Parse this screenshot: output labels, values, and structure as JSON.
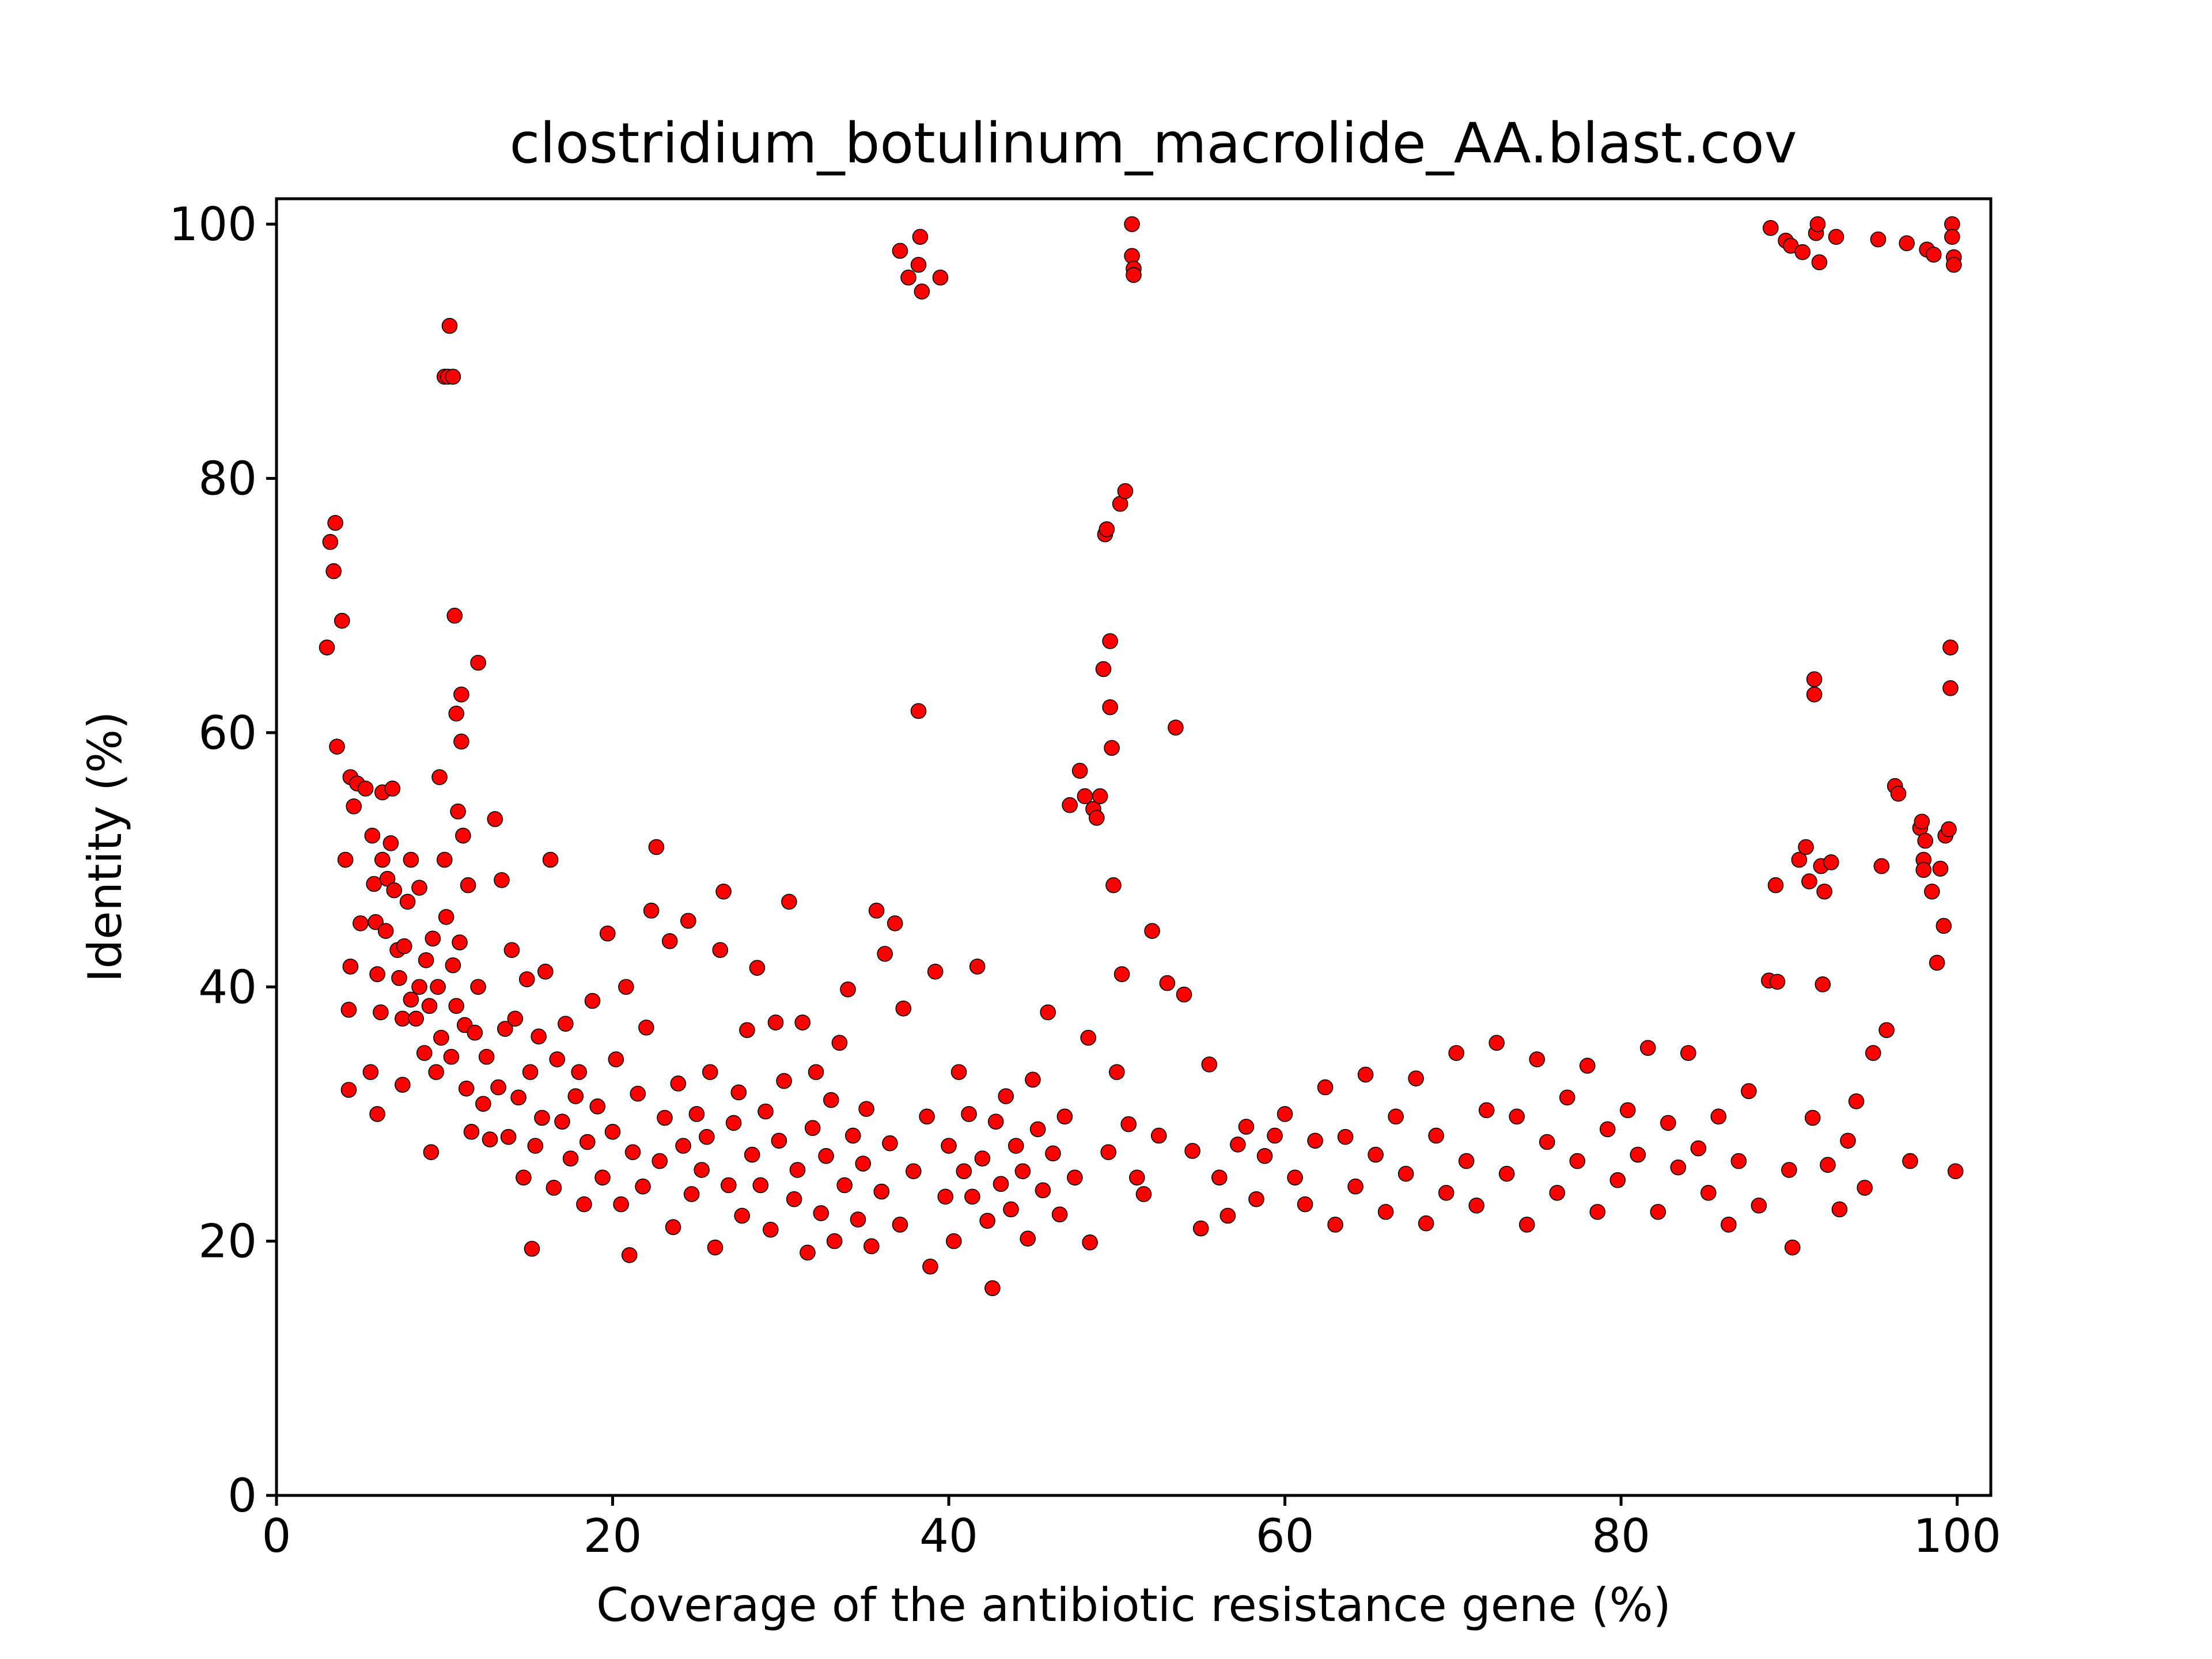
{
  "chart_data": {
    "type": "scatter",
    "title": "clostridium_botulinum_macrolide_AA.blast.cov",
    "xlabel": "Coverage of the antibiotic resistance gene (%)",
    "ylabel": "Identity (%)",
    "xlim": [
      0,
      102
    ],
    "ylim": [
      0,
      102
    ],
    "xticks": [
      0,
      20,
      40,
      60,
      80,
      100
    ],
    "yticks": [
      0,
      20,
      40,
      60,
      80,
      100
    ],
    "grid": false,
    "marker_color": "#ff0000",
    "marker_edge_color": "#000000",
    "points": [
      [
        3.0,
        66.7
      ],
      [
        3.2,
        75.0
      ],
      [
        3.4,
        72.7
      ],
      [
        3.5,
        76.5
      ],
      [
        3.6,
        58.9
      ],
      [
        3.9,
        68.8
      ],
      [
        4.1,
        50.0
      ],
      [
        4.3,
        31.9
      ],
      [
        4.3,
        38.2
      ],
      [
        4.4,
        41.6
      ],
      [
        4.4,
        56.5
      ],
      [
        4.6,
        54.2
      ],
      [
        4.8,
        56.0
      ],
      [
        5.0,
        45.0
      ],
      [
        5.3,
        55.6
      ],
      [
        5.6,
        33.3
      ],
      [
        5.7,
        51.9
      ],
      [
        5.8,
        48.1
      ],
      [
        5.9,
        45.1
      ],
      [
        6.0,
        30.0
      ],
      [
        6.0,
        41.0
      ],
      [
        6.2,
        38.0
      ],
      [
        6.3,
        55.3
      ],
      [
        6.3,
        50.0
      ],
      [
        6.5,
        44.4
      ],
      [
        6.6,
        48.5
      ],
      [
        6.8,
        51.3
      ],
      [
        6.9,
        55.6
      ],
      [
        7.0,
        47.6
      ],
      [
        7.2,
        42.9
      ],
      [
        7.3,
        40.7
      ],
      [
        7.5,
        37.5
      ],
      [
        7.5,
        32.3
      ],
      [
        7.6,
        43.2
      ],
      [
        7.8,
        46.7
      ],
      [
        8.0,
        50.0
      ],
      [
        8.0,
        39.0
      ],
      [
        8.3,
        37.5
      ],
      [
        8.5,
        40.0
      ],
      [
        8.5,
        47.8
      ],
      [
        8.8,
        34.8
      ],
      [
        8.9,
        42.1
      ],
      [
        9.1,
        38.5
      ],
      [
        9.2,
        27.0
      ],
      [
        9.3,
        43.8
      ],
      [
        9.5,
        33.3
      ],
      [
        9.6,
        40.0
      ],
      [
        9.7,
        56.5
      ],
      [
        9.8,
        36.0
      ],
      [
        10.0,
        88.0
      ],
      [
        10.0,
        50.0
      ],
      [
        10.1,
        45.5
      ],
      [
        10.2,
        88.0
      ],
      [
        10.3,
        92.0
      ],
      [
        10.4,
        34.5
      ],
      [
        10.5,
        88.0
      ],
      [
        10.5,
        41.7
      ],
      [
        10.6,
        69.2
      ],
      [
        10.7,
        61.5
      ],
      [
        10.7,
        38.5
      ],
      [
        10.8,
        53.8
      ],
      [
        10.9,
        43.5
      ],
      [
        11.0,
        63.0
      ],
      [
        11.0,
        59.3
      ],
      [
        11.1,
        51.9
      ],
      [
        11.2,
        37.0
      ],
      [
        11.3,
        32.0
      ],
      [
        11.4,
        48.0
      ],
      [
        11.6,
        28.6
      ],
      [
        11.8,
        36.4
      ],
      [
        12.0,
        65.5
      ],
      [
        12.0,
        40.0
      ],
      [
        12.3,
        30.8
      ],
      [
        12.5,
        34.5
      ],
      [
        12.7,
        28.0
      ],
      [
        13.0,
        53.2
      ],
      [
        13.2,
        32.1
      ],
      [
        13.4,
        48.4
      ],
      [
        13.6,
        36.7
      ],
      [
        13.8,
        28.2
      ],
      [
        14.0,
        42.9
      ],
      [
        14.2,
        37.5
      ],
      [
        14.4,
        31.3
      ],
      [
        14.7,
        25.0
      ],
      [
        14.9,
        40.6
      ],
      [
        15.1,
        33.3
      ],
      [
        15.2,
        19.4
      ],
      [
        15.4,
        27.5
      ],
      [
        15.6,
        36.1
      ],
      [
        15.8,
        29.7
      ],
      [
        16.0,
        41.2
      ],
      [
        16.3,
        50.0
      ],
      [
        16.5,
        24.2
      ],
      [
        16.7,
        34.3
      ],
      [
        17.0,
        29.4
      ],
      [
        17.2,
        37.1
      ],
      [
        17.5,
        26.5
      ],
      [
        17.8,
        31.4
      ],
      [
        18.0,
        33.3
      ],
      [
        18.3,
        22.9
      ],
      [
        18.5,
        27.8
      ],
      [
        18.8,
        38.9
      ],
      [
        19.1,
        30.6
      ],
      [
        19.4,
        25.0
      ],
      [
        19.7,
        44.2
      ],
      [
        20.0,
        28.6
      ],
      [
        20.2,
        34.3
      ],
      [
        20.5,
        22.9
      ],
      [
        20.8,
        40.0
      ],
      [
        21.0,
        18.9
      ],
      [
        21.2,
        27.0
      ],
      [
        21.5,
        31.6
      ],
      [
        21.8,
        24.3
      ],
      [
        22.0,
        36.8
      ],
      [
        22.3,
        46.0
      ],
      [
        22.6,
        51.0
      ],
      [
        22.8,
        26.3
      ],
      [
        23.1,
        29.7
      ],
      [
        23.4,
        43.6
      ],
      [
        23.6,
        21.1
      ],
      [
        23.9,
        32.4
      ],
      [
        24.2,
        27.5
      ],
      [
        24.5,
        45.2
      ],
      [
        24.7,
        23.7
      ],
      [
        25.0,
        30.0
      ],
      [
        25.3,
        25.6
      ],
      [
        25.6,
        28.2
      ],
      [
        25.8,
        33.3
      ],
      [
        26.1,
        19.5
      ],
      [
        26.4,
        42.9
      ],
      [
        26.6,
        47.5
      ],
      [
        26.9,
        24.4
      ],
      [
        27.2,
        29.3
      ],
      [
        27.5,
        31.7
      ],
      [
        27.7,
        22.0
      ],
      [
        28.0,
        36.6
      ],
      [
        28.3,
        26.8
      ],
      [
        28.6,
        41.5
      ],
      [
        28.8,
        24.4
      ],
      [
        29.1,
        30.2
      ],
      [
        29.4,
        20.9
      ],
      [
        29.7,
        37.2
      ],
      [
        29.9,
        27.9
      ],
      [
        30.2,
        32.6
      ],
      [
        30.5,
        46.7
      ],
      [
        30.8,
        23.3
      ],
      [
        31.0,
        25.6
      ],
      [
        31.3,
        37.2
      ],
      [
        31.6,
        19.1
      ],
      [
        31.9,
        28.9
      ],
      [
        32.1,
        33.3
      ],
      [
        32.4,
        22.2
      ],
      [
        32.7,
        26.7
      ],
      [
        33.0,
        31.1
      ],
      [
        33.2,
        20.0
      ],
      [
        33.5,
        35.6
      ],
      [
        33.8,
        24.4
      ],
      [
        34.0,
        39.8
      ],
      [
        34.3,
        28.3
      ],
      [
        34.6,
        21.7
      ],
      [
        34.9,
        26.1
      ],
      [
        35.1,
        30.4
      ],
      [
        35.4,
        19.6
      ],
      [
        35.7,
        46.0
      ],
      [
        36.0,
        23.9
      ],
      [
        36.2,
        42.6
      ],
      [
        36.5,
        27.7
      ],
      [
        36.8,
        45.0
      ],
      [
        37.1,
        97.9
      ],
      [
        37.1,
        21.3
      ],
      [
        37.3,
        38.3
      ],
      [
        37.6,
        95.8
      ],
      [
        37.9,
        25.5
      ],
      [
        38.2,
        96.8
      ],
      [
        38.2,
        61.7
      ],
      [
        38.3,
        99.0
      ],
      [
        38.4,
        94.7
      ],
      [
        38.7,
        29.8
      ],
      [
        38.9,
        18.0
      ],
      [
        39.2,
        41.2
      ],
      [
        39.5,
        95.8
      ],
      [
        39.8,
        23.5
      ],
      [
        40.0,
        27.5
      ],
      [
        40.3,
        20.0
      ],
      [
        40.6,
        33.3
      ],
      [
        40.9,
        25.5
      ],
      [
        41.2,
        30.0
      ],
      [
        41.4,
        23.5
      ],
      [
        41.7,
        41.6
      ],
      [
        42.0,
        26.5
      ],
      [
        42.3,
        21.6
      ],
      [
        42.6,
        16.3
      ],
      [
        42.8,
        29.4
      ],
      [
        43.1,
        24.5
      ],
      [
        43.4,
        31.4
      ],
      [
        43.7,
        22.5
      ],
      [
        44.0,
        27.5
      ],
      [
        44.4,
        25.5
      ],
      [
        44.7,
        20.2
      ],
      [
        45.0,
        32.7
      ],
      [
        45.3,
        28.8
      ],
      [
        45.6,
        24.0
      ],
      [
        45.9,
        38.0
      ],
      [
        46.2,
        26.9
      ],
      [
        46.6,
        22.1
      ],
      [
        46.9,
        29.8
      ],
      [
        47.2,
        54.3
      ],
      [
        47.5,
        25.0
      ],
      [
        47.8,
        57.0
      ],
      [
        48.1,
        55.0
      ],
      [
        48.3,
        36.0
      ],
      [
        48.4,
        19.9
      ],
      [
        48.6,
        54.0
      ],
      [
        48.8,
        53.3
      ],
      [
        49.0,
        55.0
      ],
      [
        49.2,
        65.0
      ],
      [
        49.3,
        75.6
      ],
      [
        49.4,
        76.0
      ],
      [
        49.5,
        27.0
      ],
      [
        49.6,
        67.2
      ],
      [
        49.6,
        62.0
      ],
      [
        49.7,
        58.8
      ],
      [
        49.8,
        48.0
      ],
      [
        50.0,
        33.3
      ],
      [
        50.2,
        78.0
      ],
      [
        50.3,
        41.0
      ],
      [
        50.5,
        79.0
      ],
      [
        50.7,
        29.2
      ],
      [
        50.9,
        100.0
      ],
      [
        50.9,
        97.5
      ],
      [
        51.0,
        96.5
      ],
      [
        51.0,
        96.0
      ],
      [
        51.2,
        25.0
      ],
      [
        51.6,
        23.7
      ],
      [
        52.1,
        44.4
      ],
      [
        52.5,
        28.3
      ],
      [
        53.0,
        40.3
      ],
      [
        53.5,
        60.4
      ],
      [
        54.0,
        39.4
      ],
      [
        54.5,
        27.1
      ],
      [
        55.0,
        21.0
      ],
      [
        55.5,
        33.9
      ],
      [
        56.1,
        25.0
      ],
      [
        56.6,
        22.0
      ],
      [
        57.2,
        27.6
      ],
      [
        57.7,
        29.0
      ],
      [
        58.3,
        23.3
      ],
      [
        58.8,
        26.7
      ],
      [
        59.4,
        28.3
      ],
      [
        60.0,
        30.0
      ],
      [
        60.6,
        25.0
      ],
      [
        61.2,
        22.9
      ],
      [
        61.8,
        27.9
      ],
      [
        62.4,
        32.1
      ],
      [
        63.0,
        21.3
      ],
      [
        63.6,
        28.2
      ],
      [
        64.2,
        24.3
      ],
      [
        64.8,
        33.1
      ],
      [
        65.4,
        26.8
      ],
      [
        66.0,
        22.3
      ],
      [
        66.6,
        29.8
      ],
      [
        67.2,
        25.3
      ],
      [
        67.8,
        32.8
      ],
      [
        68.4,
        21.4
      ],
      [
        69.0,
        28.3
      ],
      [
        69.6,
        23.8
      ],
      [
        70.2,
        34.8
      ],
      [
        70.8,
        26.3
      ],
      [
        71.4,
        22.8
      ],
      [
        72.0,
        30.3
      ],
      [
        72.6,
        35.6
      ],
      [
        73.2,
        25.3
      ],
      [
        73.8,
        29.8
      ],
      [
        74.4,
        21.3
      ],
      [
        75.0,
        34.3
      ],
      [
        75.6,
        27.8
      ],
      [
        76.2,
        23.8
      ],
      [
        76.8,
        31.3
      ],
      [
        77.4,
        26.3
      ],
      [
        78.0,
        33.8
      ],
      [
        78.6,
        22.3
      ],
      [
        79.2,
        28.8
      ],
      [
        79.8,
        24.8
      ],
      [
        80.4,
        30.3
      ],
      [
        81.0,
        26.8
      ],
      [
        81.6,
        35.2
      ],
      [
        82.2,
        22.3
      ],
      [
        82.8,
        29.3
      ],
      [
        83.4,
        25.8
      ],
      [
        84.0,
        34.8
      ],
      [
        84.6,
        27.3
      ],
      [
        85.2,
        23.8
      ],
      [
        85.8,
        29.8
      ],
      [
        86.4,
        21.3
      ],
      [
        87.0,
        26.3
      ],
      [
        87.6,
        31.8
      ],
      [
        88.2,
        22.8
      ],
      [
        88.8,
        40.5
      ],
      [
        88.9,
        99.7
      ],
      [
        89.2,
        48.0
      ],
      [
        89.3,
        40.4
      ],
      [
        89.8,
        98.7
      ],
      [
        90.0,
        25.6
      ],
      [
        90.1,
        98.3
      ],
      [
        90.2,
        19.5
      ],
      [
        90.6,
        50.0
      ],
      [
        90.8,
        97.8
      ],
      [
        91.0,
        51.0
      ],
      [
        91.2,
        48.3
      ],
      [
        91.4,
        29.7
      ],
      [
        91.5,
        64.2
      ],
      [
        91.5,
        63.0
      ],
      [
        91.6,
        99.3
      ],
      [
        91.7,
        100.0
      ],
      [
        91.8,
        97.0
      ],
      [
        91.9,
        49.5
      ],
      [
        92.0,
        40.2
      ],
      [
        92.1,
        47.5
      ],
      [
        92.3,
        26.0
      ],
      [
        92.5,
        49.8
      ],
      [
        92.8,
        99.0
      ],
      [
        93.0,
        22.5
      ],
      [
        93.5,
        27.9
      ],
      [
        94.0,
        31.0
      ],
      [
        94.5,
        24.2
      ],
      [
        95.0,
        34.8
      ],
      [
        95.3,
        98.8
      ],
      [
        95.5,
        49.5
      ],
      [
        95.8,
        36.6
      ],
      [
        96.3,
        55.8
      ],
      [
        96.5,
        55.2
      ],
      [
        97.0,
        98.5
      ],
      [
        97.2,
        26.3
      ],
      [
        97.8,
        52.5
      ],
      [
        97.9,
        53.0
      ],
      [
        98.0,
        50.0
      ],
      [
        98.0,
        49.2
      ],
      [
        98.1,
        51.5
      ],
      [
        98.2,
        98.0
      ],
      [
        98.5,
        47.5
      ],
      [
        98.6,
        97.6
      ],
      [
        98.8,
        41.9
      ],
      [
        99.0,
        49.3
      ],
      [
        99.2,
        44.8
      ],
      [
        99.3,
        51.9
      ],
      [
        99.5,
        52.4
      ],
      [
        99.6,
        66.7
      ],
      [
        99.6,
        63.5
      ],
      [
        99.7,
        100.0
      ],
      [
        99.7,
        99.0
      ],
      [
        99.8,
        97.4
      ],
      [
        99.8,
        96.8
      ],
      [
        99.9,
        25.5
      ]
    ]
  }
}
